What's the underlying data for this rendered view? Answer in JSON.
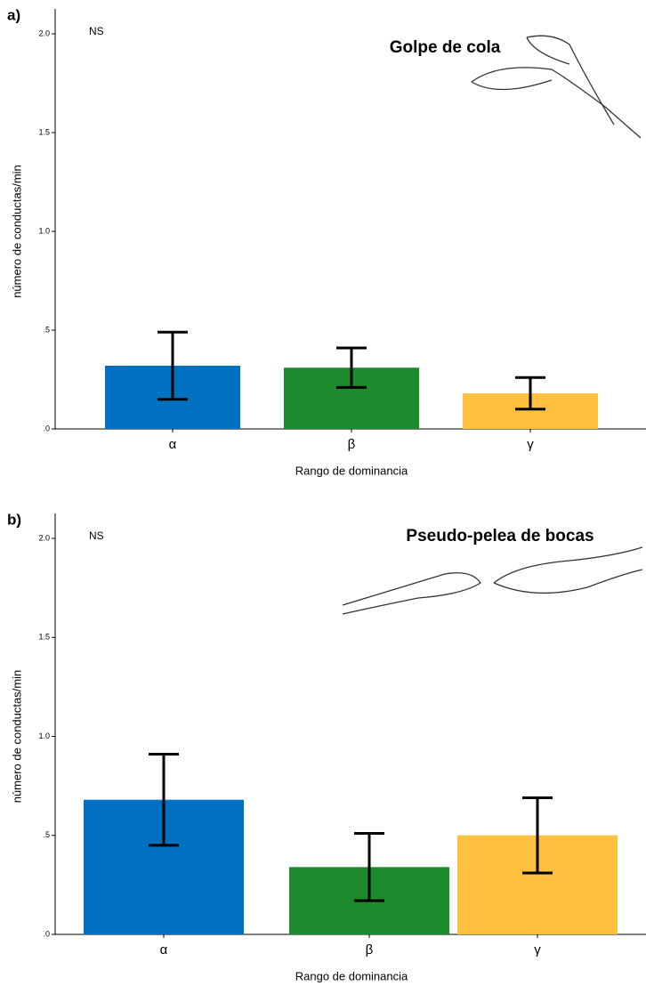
{
  "chart_data": [
    {
      "type": "bar",
      "panel": "a)",
      "title": "Golpe de cola",
      "note": "NS",
      "y_label": "número de conductas/min",
      "x_label": "Rango de dominancia",
      "categories": [
        "α",
        "β",
        "γ"
      ],
      "values": [
        0.32,
        0.31,
        0.18
      ],
      "errors": [
        0.17,
        0.1,
        0.08
      ],
      "colors": [
        "#0070c0",
        "#1e8a2e",
        "#ffc040"
      ],
      "ylim": [
        0,
        2
      ],
      "yticks": [
        {
          "value": 0,
          "label": ".0"
        },
        {
          "value": 0.5,
          "label": ".5"
        },
        {
          "value": 1,
          "label": "1.0"
        },
        1.5,
        {
          "value": 2,
          "label": "2.0"
        }
      ]
    },
    {
      "type": "bar",
      "panel": "b)",
      "title": "Pseudo-pelea de bocas",
      "note": "NS",
      "y_label": "número de conductas/min",
      "x_label": "Rango de dominancia",
      "categories": [
        "α",
        "β",
        "γ"
      ],
      "values": [
        0.68,
        0.34,
        0.5
      ],
      "errors": [
        0.23,
        0.17,
        0.19
      ],
      "colors": [
        "#0070c0",
        "#1e8a2e",
        "#ffc040"
      ],
      "ylim": [
        0,
        2
      ],
      "yticks": [
        {
          "value": 0,
          "label": ".0"
        },
        {
          "value": 0.5,
          "label": ".5"
        },
        {
          "value": 1,
          "label": "1.0"
        },
        1.5,
        {
          "value": 2,
          "label": "2.0"
        }
      ]
    }
  ]
}
